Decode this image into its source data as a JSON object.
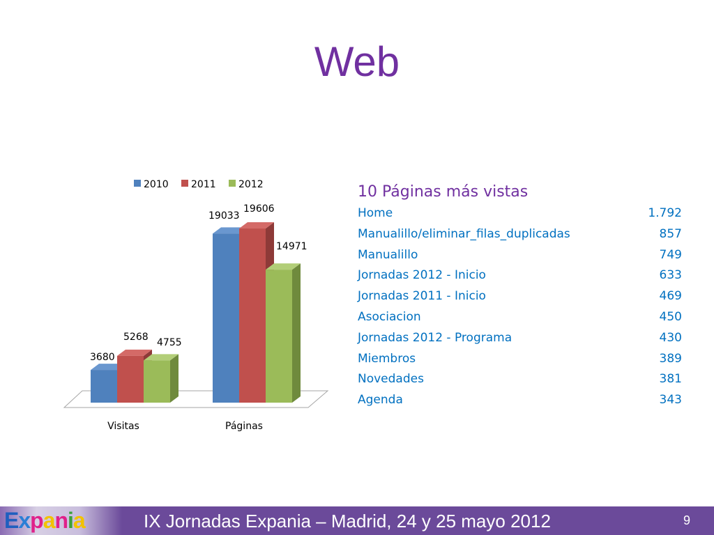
{
  "slide": {
    "title": "Web",
    "page_number": "9"
  },
  "chart_data": {
    "type": "bar",
    "categories": [
      "Visitas",
      "Páginas"
    ],
    "series": [
      {
        "name": "2010",
        "values": [
          3680,
          19033
        ],
        "color": "#4f81bd",
        "side": "#3a5f8c",
        "top": "#6a97cf"
      },
      {
        "name": "2011",
        "values": [
          5268,
          19606
        ],
        "color": "#c0504d",
        "side": "#8e3a38",
        "top": "#d46a67"
      },
      {
        "name": "2012",
        "values": [
          4755,
          14971
        ],
        "color": "#9bbb59",
        "side": "#6f8a3d",
        "top": "#b2ce78"
      }
    ],
    "ylim": [
      0,
      20000
    ],
    "legend": "top",
    "grid": false,
    "data_labels": true
  },
  "table": {
    "title": "10 Páginas más vistas",
    "rows": [
      {
        "name": "Home",
        "value": "1.792"
      },
      {
        "name": "Manualillo/eliminar_filas_duplicadas",
        "value": "857"
      },
      {
        "name": "Manualillo",
        "value": "749"
      },
      {
        "name": "Jornadas 2012 - Inicio",
        "value": "633"
      },
      {
        "name": "Jornadas 2011 - Inicio",
        "value": "469"
      },
      {
        "name": "Asociacion",
        "value": "450"
      },
      {
        "name": "Jornadas 2012 - Programa",
        "value": "430"
      },
      {
        "name": "Miembros",
        "value": "389"
      },
      {
        "name": "Novedades",
        "value": "381"
      },
      {
        "name": "Agenda",
        "value": "343"
      }
    ]
  },
  "footer": {
    "logo_text": "Expania",
    "text": "IX Jornadas Expania – Madrid, 24 y 25 mayo 2012",
    "background": "#6b4a9a"
  }
}
